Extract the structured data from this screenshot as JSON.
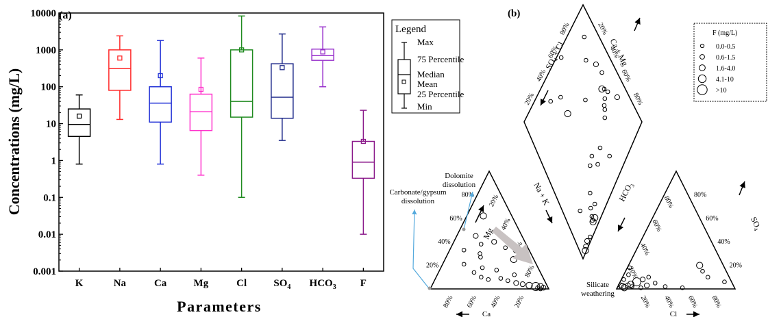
{
  "chart_data": [
    {
      "panel_label": "(a)",
      "type": "box",
      "xlabel": "Parameters",
      "ylabel": "Concentrations (mg/L)",
      "yscale": "log",
      "ylim": [
        0.001,
        10000
      ],
      "ytick_labels": [
        "0.001",
        "0.01",
        "0.1",
        "1",
        "10",
        "100",
        "1000",
        "10000"
      ],
      "categories": [
        "K",
        "Na",
        "Ca",
        "Mg",
        "Cl",
        "SO4",
        "HCO3",
        "F"
      ],
      "category_labels": [
        {
          "base": "K",
          "sub": ""
        },
        {
          "base": "Na",
          "sub": ""
        },
        {
          "base": "Ca",
          "sub": ""
        },
        {
          "base": "Mg",
          "sub": ""
        },
        {
          "base": "Cl",
          "sub": ""
        },
        {
          "base": "SO",
          "sub": "4"
        },
        {
          "base": "HCO",
          "sub": "3"
        },
        {
          "base": "F",
          "sub": ""
        }
      ],
      "colors": [
        "#000000",
        "#ff2a2a",
        "#1f2fd6",
        "#ff33cc",
        "#1f8a1f",
        "#1f2a8a",
        "#9933cc",
        "#8b1a8b"
      ],
      "boxes": [
        {
          "min": 0.8,
          "q1": 4.5,
          "median": 9.5,
          "q3": 25,
          "max": 60,
          "mean": 16
        },
        {
          "min": 13,
          "q1": 80,
          "median": 310,
          "q3": 1000,
          "max": 2400,
          "mean": 600
        },
        {
          "min": 0.8,
          "q1": 11,
          "median": 36,
          "q3": 100,
          "max": 1800,
          "mean": 200
        },
        {
          "min": 0.4,
          "q1": 6.5,
          "median": 21,
          "q3": 63,
          "max": 600,
          "mean": 85
        },
        {
          "min": 0.1,
          "q1": 15,
          "median": 40,
          "q3": 1000,
          "max": 8300,
          "mean": 1000
        },
        {
          "min": 3.5,
          "q1": 14,
          "median": 52,
          "q3": 420,
          "max": 2700,
          "mean": 330
        },
        {
          "min": 100,
          "q1": 520,
          "median": 700,
          "q3": 1050,
          "max": 4200,
          "mean": 880
        },
        {
          "min": 0.01,
          "q1": 0.33,
          "median": 0.9,
          "q3": 3.3,
          "max": 23,
          "mean": 3.3
        }
      ],
      "legend": {
        "title": "Legend",
        "entries": [
          "Max",
          "75 Percentile",
          "Median",
          "Mean",
          "25 Percentile",
          "Min"
        ]
      }
    },
    {
      "panel_label": "(b)",
      "type": "scatter",
      "subtype": "piper-diagram",
      "legend": {
        "title": "F (mg/L)",
        "entries": [
          "0.0-0.5",
          "0.6-1.5",
          "1.6-4.0",
          "4.1-10",
          ">10"
        ]
      },
      "axis_labels": {
        "cation_left": "Mg",
        "cation_bottom": "Ca",
        "cation_right": "Na + K",
        "anion_left": "HCO3",
        "anion_bottom": "Cl",
        "anion_right": "SO4",
        "diamond_upper_left": "SO4 + Cl",
        "diamond_upper_right": "Ca + Mg"
      },
      "tick_labels": [
        "20%",
        "40%",
        "60%",
        "80%"
      ],
      "annotations": [
        "Dolomite dissolution",
        "Carbonate/gypsum dissolution",
        "Silicate weathering"
      ],
      "point_classes": [
        "0.0-0.5",
        "0.6-1.5",
        "1.6-4.0",
        "4.1-10",
        ">10"
      ],
      "cation_points": [
        {
          "Mg": 62,
          "NaK": 14,
          "F": 2
        },
        {
          "Mg": 45,
          "NaK": 16,
          "F": 1
        },
        {
          "Mg": 40,
          "NaK": 34,
          "F": 1
        },
        {
          "Mg": 38,
          "NaK": 24,
          "F": 0
        },
        {
          "Mg": 35,
          "NaK": 46,
          "F": 0
        },
        {
          "Mg": 33,
          "NaK": 12,
          "F": 0
        },
        {
          "Mg": 30,
          "NaK": 27,
          "F": 0
        },
        {
          "Mg": 27,
          "NaK": 29,
          "F": 0
        },
        {
          "Mg": 25,
          "NaK": 58,
          "F": 2
        },
        {
          "Mg": 21,
          "NaK": 18,
          "F": 0
        },
        {
          "Mg": 18,
          "NaK": 35,
          "F": 0
        },
        {
          "Mg": 16,
          "NaK": 48,
          "F": 0
        },
        {
          "Mg": 14,
          "NaK": 30,
          "F": 0
        },
        {
          "Mg": 12,
          "NaK": 65,
          "F": 0
        },
        {
          "Mg": 10,
          "NaK": 38,
          "F": 0
        },
        {
          "Mg": 9,
          "NaK": 55,
          "F": 0
        },
        {
          "Mg": 7,
          "NaK": 62,
          "F": 0
        },
        {
          "Mg": 5,
          "NaK": 70,
          "F": 1
        },
        {
          "Mg": 4,
          "NaK": 76,
          "F": 1
        },
        {
          "Mg": 3,
          "NaK": 82,
          "F": 2
        },
        {
          "Mg": 2,
          "NaK": 88,
          "F": 3
        },
        {
          "Mg": 2,
          "NaK": 92,
          "F": 2
        },
        {
          "Mg": 1,
          "NaK": 95,
          "F": 1
        },
        {
          "Mg": 1,
          "NaK": 90,
          "F": 0
        },
        {
          "Mg": 0,
          "NaK": 93,
          "F": 0
        },
        {
          "Mg": 8,
          "NaK": 45,
          "F": 0
        }
      ],
      "anion_points": [
        {
          "SO4": 3,
          "Cl": 2,
          "F": 1
        },
        {
          "SO4": 2,
          "Cl": 4,
          "F": 2
        },
        {
          "SO4": 1,
          "Cl": 6,
          "F": 2
        },
        {
          "SO4": 3,
          "Cl": 8,
          "F": 1
        },
        {
          "SO4": 4,
          "Cl": 10,
          "F": 2
        },
        {
          "SO4": 6,
          "Cl": 14,
          "F": 3
        },
        {
          "SO4": 2,
          "Cl": 12,
          "F": 0
        },
        {
          "SO4": 8,
          "Cl": 18,
          "F": 1
        },
        {
          "SO4": 1,
          "Cl": 20,
          "F": 0
        },
        {
          "SO4": 3,
          "Cl": 24,
          "F": 1
        },
        {
          "SO4": 10,
          "Cl": 22,
          "F": 0
        },
        {
          "SO4": 5,
          "Cl": 30,
          "F": 0
        },
        {
          "SO4": 2,
          "Cl": 40,
          "F": 0
        },
        {
          "SO4": 1,
          "Cl": 55,
          "F": 0
        },
        {
          "SO4": 20,
          "Cl": 60,
          "F": 2
        },
        {
          "SO4": 15,
          "Cl": 65,
          "F": 0
        },
        {
          "SO4": 10,
          "Cl": 72,
          "F": 0
        },
        {
          "SO4": 6,
          "Cl": 88,
          "F": 0
        },
        {
          "SO4": 8,
          "Cl": 2,
          "F": 0
        },
        {
          "SO4": 12,
          "Cl": 4,
          "F": 0
        },
        {
          "SO4": 18,
          "Cl": 2,
          "F": 0
        }
      ],
      "diamond_points": [
        {
          "SO4Cl": 85,
          "CaMg": 30,
          "F": 0
        },
        {
          "SO4Cl": 78,
          "CaMg": 40,
          "F": 0
        },
        {
          "SO4Cl": 70,
          "CaMg": 75,
          "F": 0
        },
        {
          "SO4Cl": 66,
          "CaMg": 40,
          "F": 2
        },
        {
          "SO4Cl": 60,
          "CaMg": 82,
          "F": 1
        },
        {
          "SO4Cl": 56,
          "CaMg": 60,
          "F": 0
        },
        {
          "SO4Cl": 52,
          "CaMg": 84,
          "F": 0
        },
        {
          "SO4Cl": 46,
          "CaMg": 78,
          "F": 2
        },
        {
          "SO4Cl": 44,
          "CaMg": 80,
          "F": 0
        },
        {
          "SO4Cl": 40,
          "CaMg": 82,
          "F": 0
        },
        {
          "SO4Cl": 40,
          "CaMg": 77,
          "F": 0
        },
        {
          "SO4Cl": 38,
          "CaMg": 74,
          "F": 0
        },
        {
          "SO4Cl": 36,
          "CaMg": 73,
          "F": 0
        },
        {
          "SO4Cl": 33,
          "CaMg": 70,
          "F": 0
        },
        {
          "SO4Cl": 30,
          "CaMg": 88,
          "F": 1
        },
        {
          "SO4Cl": 30,
          "CaMg": 45,
          "F": 0
        },
        {
          "SO4Cl": 28,
          "CaMg": 40,
          "F": 0
        },
        {
          "SO4Cl": 26,
          "CaMg": 55,
          "F": 0
        },
        {
          "SO4Cl": 22,
          "CaMg": 47,
          "F": 0
        },
        {
          "SO4Cl": 20,
          "CaMg": 15,
          "F": 0
        },
        {
          "SO4Cl": 18,
          "CaMg": 30,
          "F": 0
        },
        {
          "SO4Cl": 15,
          "CaMg": 60,
          "F": 0
        },
        {
          "SO4Cl": 12,
          "CaMg": 25,
          "F": 0
        },
        {
          "SO4Cl": 10,
          "CaMg": 30,
          "F": 0
        },
        {
          "SO4Cl": 8,
          "CaMg": 23,
          "F": 0
        },
        {
          "SO4Cl": 6,
          "CaMg": 22,
          "F": 0
        },
        {
          "SO4Cl": 5,
          "CaMg": 25,
          "F": 2
        },
        {
          "SO4Cl": 5,
          "CaMg": 22,
          "F": 2
        },
        {
          "SO4Cl": 3,
          "CaMg": 10,
          "F": 1
        },
        {
          "SO4Cl": 2,
          "CaMg": 14,
          "F": 0
        },
        {
          "SO4Cl": 2,
          "CaMg": 7,
          "F": 1
        },
        {
          "SO4Cl": 1,
          "CaMg": 5,
          "F": 2
        },
        {
          "SO4Cl": 92,
          "CaMg": 55,
          "F": 0
        },
        {
          "SO4Cl": 80,
          "CaMg": 82,
          "F": 0
        }
      ]
    }
  ]
}
